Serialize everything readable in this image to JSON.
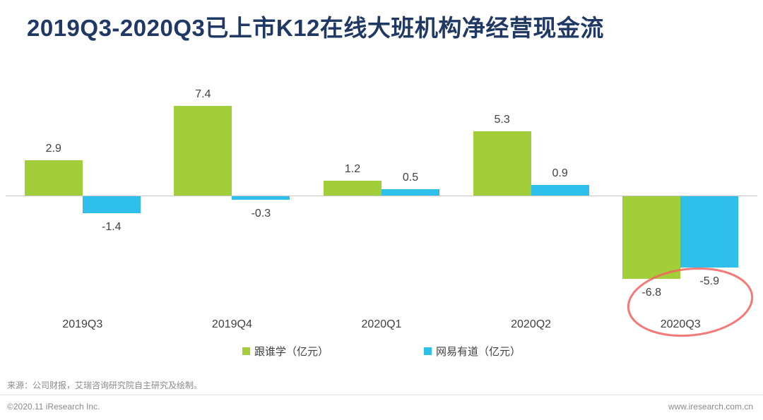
{
  "title": "2019Q3-2020Q3已上市K12在线大班机构净经营现金流",
  "chart_data": {
    "type": "bar",
    "categories": [
      "2019Q3",
      "2019Q4",
      "2020Q1",
      "2020Q2",
      "2020Q3"
    ],
    "series": [
      {
        "name": "跟谁学（亿元）",
        "color": "#A2CE39",
        "values": [
          2.9,
          7.4,
          1.2,
          5.3,
          -6.8
        ]
      },
      {
        "name": "网易有道（亿元）",
        "color": "#2EC0EA",
        "values": [
          -1.4,
          -0.3,
          0.5,
          0.9,
          -5.9
        ]
      }
    ],
    "ylim": [
      -8,
      9
    ],
    "grid": false,
    "legend_position": "bottom",
    "baseline_color": "#C6C6C6",
    "annotation": {
      "type": "hand-drawn-ellipse",
      "target": "2020Q3",
      "color": "#F2635F"
    }
  },
  "source": "来源：公司财报，艾瑞咨询研究院自主研究及绘制。",
  "footer": {
    "copyright": "©2020.11 iResearch Inc.",
    "website": "www.iresearch.com.cn"
  }
}
